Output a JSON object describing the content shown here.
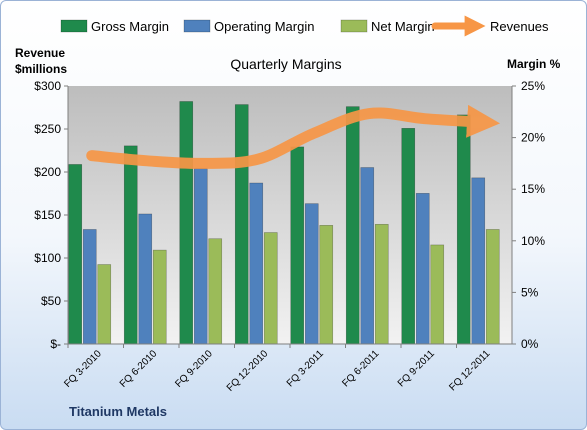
{
  "chart_data": {
    "type": "bar",
    "title": "Quarterly Margins",
    "company": "Titanium Metals",
    "ylabel_left_line1": "Revenue",
    "ylabel_left_line2": "$millions",
    "ylabel_right": "Margin %",
    "categories": [
      "FQ 3-2010",
      "FQ 6-2010",
      "FQ 9-2010",
      "FQ 12-2010",
      "FQ 3-2011",
      "FQ 6-2011",
      "FQ 9-2011",
      "FQ 12-2011"
    ],
    "y_left": {
      "min": 0,
      "max": 300,
      "ticks": [
        0,
        50,
        100,
        150,
        200,
        250,
        300
      ],
      "tick_labels": [
        "$-",
        "$50",
        "$100",
        "$150",
        "$200",
        "$250",
        "$300"
      ]
    },
    "y_right": {
      "min": 0,
      "max": 25,
      "ticks": [
        0,
        5,
        10,
        15,
        20,
        25
      ],
      "tick_labels": [
        "0%",
        "5%",
        "10%",
        "15%",
        "20%",
        "25%"
      ]
    },
    "series": [
      {
        "name": "Gross Margin",
        "axis": "right",
        "color": "#1f8a4c",
        "values": [
          17.4,
          19.2,
          23.5,
          23.2,
          19.1,
          23.0,
          20.9,
          22.2
        ]
      },
      {
        "name": "Operating Margin",
        "axis": "right",
        "color": "#4f81bd",
        "values": [
          11.1,
          12.6,
          17.0,
          15.6,
          13.6,
          17.1,
          14.6,
          16.1
        ]
      },
      {
        "name": "Net Margin",
        "axis": "right",
        "color": "#9bbb59",
        "values": [
          7.7,
          9.1,
          10.2,
          10.8,
          11.5,
          11.6,
          9.6,
          11.1
        ]
      },
      {
        "name": "Revenues",
        "axis": "left",
        "type": "line",
        "color": "#f79646",
        "values": [
          219,
          213,
          210,
          215,
          245,
          268,
          262,
          258
        ]
      }
    ],
    "legend_position": "top",
    "grid": false
  }
}
